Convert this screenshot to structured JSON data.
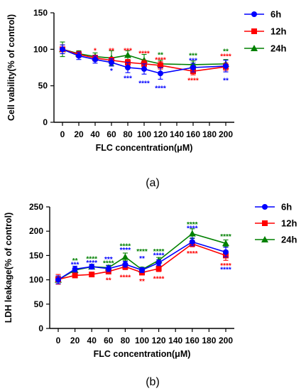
{
  "panels": [
    {
      "caption": "(a)",
      "chart_data": {
        "type": "line",
        "xlabel": "FLC concentration(μM)",
        "ylabel": "Cell vability(% of control)",
        "x_ticks": [
          "0",
          "20",
          "40",
          "60",
          "80",
          "100",
          "120",
          "140",
          "160",
          "180",
          "200"
        ],
        "y_ticks": [
          "0",
          "50",
          "100",
          "150"
        ],
        "ylim": [
          0,
          150
        ],
        "legend_position": "top-right",
        "series": [
          {
            "name": "6h",
            "color": "#0000ff",
            "marker": "circle",
            "x": [
              0,
              20,
              40,
              60,
              80,
              100,
              120,
              160,
              200
            ],
            "y": [
              100,
              91,
              86,
              82,
              75,
              73,
              67,
              75,
              77
            ],
            "err": [
              6,
              5,
              5,
              5,
              7,
              7,
              8,
              6,
              8
            ]
          },
          {
            "name": "12h",
            "color": "#ff0000",
            "marker": "square",
            "x": [
              0,
              20,
              40,
              60,
              80,
              100,
              120,
              160,
              200
            ],
            "y": [
              100,
              93,
              88,
              85,
              82,
              80,
              78,
              70,
              76
            ],
            "err": [
              6,
              4,
              4,
              4,
              4,
              5,
              5,
              5,
              5
            ]
          },
          {
            "name": "24h",
            "color": "#008000",
            "marker": "triangle",
            "x": [
              0,
              20,
              40,
              60,
              80,
              100,
              120,
              160,
              200
            ],
            "y": [
              100,
              94,
              90,
              88,
              92,
              85,
              80,
              79,
              80
            ],
            "err": [
              10,
              4,
              5,
              10,
              6,
              8,
              5,
              5,
              6
            ]
          }
        ],
        "annotations": [
          {
            "x": 40,
            "y": 99,
            "text": "*",
            "color": "#ff0000"
          },
          {
            "x": 60,
            "y": 99,
            "text": "**",
            "color": "#ff0000"
          },
          {
            "x": 60,
            "y": 71,
            "text": "*",
            "color": "#0000ff"
          },
          {
            "x": 80,
            "y": 99,
            "text": "***",
            "color": "#ff0000"
          },
          {
            "x": 80,
            "y": 61,
            "text": "***",
            "color": "#0000ff"
          },
          {
            "x": 100,
            "y": 95,
            "text": "****",
            "color": "#ff0000"
          },
          {
            "x": 100,
            "y": 54,
            "text": "****",
            "color": "#0000ff"
          },
          {
            "x": 120,
            "y": 93,
            "text": "**",
            "color": "#008000"
          },
          {
            "x": 120,
            "y": 86,
            "text": "****",
            "color": "#ff0000"
          },
          {
            "x": 120,
            "y": 47,
            "text": "****",
            "color": "#0000ff"
          },
          {
            "x": 160,
            "y": 92,
            "text": "***",
            "color": "#008000"
          },
          {
            "x": 160,
            "y": 85,
            "text": "***",
            "color": "#0000ff"
          },
          {
            "x": 160,
            "y": 58,
            "text": "****",
            "color": "#ff0000"
          },
          {
            "x": 200,
            "y": 98,
            "text": "**",
            "color": "#008000"
          },
          {
            "x": 200,
            "y": 91,
            "text": "****",
            "color": "#ff0000"
          },
          {
            "x": 200,
            "y": 58,
            "text": "**",
            "color": "#0000ff"
          }
        ]
      }
    },
    {
      "caption": "(b)",
      "chart_data": {
        "type": "line",
        "xlabel": "FLC concentration(μM)",
        "ylabel": "LDH leakage(% of control)",
        "x_ticks": [
          "0",
          "20",
          "40",
          "60",
          "80",
          "100",
          "120",
          "140",
          "160",
          "180",
          "200"
        ],
        "y_ticks": [
          "0",
          "50",
          "100",
          "150",
          "200",
          "250"
        ],
        "ylim": [
          0,
          250
        ],
        "legend_position": "top-right",
        "series": [
          {
            "name": "6h",
            "color": "#0000ff",
            "marker": "circle",
            "x": [
              0,
              20,
              40,
              60,
              80,
              100,
              120,
              160,
              200
            ],
            "y": [
              100,
              122,
              127,
              123,
              132,
              120,
              135,
              178,
              157
            ],
            "err": [
              8,
              6,
              5,
              6,
              6,
              5,
              6,
              8,
              10
            ]
          },
          {
            "name": "12h",
            "color": "#ff0000",
            "marker": "square",
            "x": [
              0,
              20,
              40,
              60,
              80,
              100,
              120,
              160,
              200
            ],
            "y": [
              101,
              109,
              111,
              117,
              127,
              115,
              123,
              174,
              150
            ],
            "err": [
              10,
              4,
              4,
              5,
              6,
              5,
              6,
              6,
              10
            ]
          },
          {
            "name": "24h",
            "color": "#008000",
            "marker": "triangle",
            "x": [
              0,
              20,
              40,
              60,
              80,
              100,
              120,
              160,
              200
            ],
            "y": [
              100,
              120,
              127,
              125,
              147,
              121,
              140,
              195,
              175
            ],
            "err": [
              8,
              5,
              4,
              5,
              8,
              5,
              6,
              10,
              7
            ]
          }
        ],
        "annotations": [
          {
            "x": 20,
            "y": 140,
            "text": "**",
            "color": "#008000"
          },
          {
            "x": 20,
            "y": 132,
            "text": "***",
            "color": "#0000ff"
          },
          {
            "x": 40,
            "y": 144,
            "text": "****",
            "color": "#008000"
          },
          {
            "x": 40,
            "y": 136,
            "text": "****",
            "color": "#0000ff"
          },
          {
            "x": 60,
            "y": 143,
            "text": "***",
            "color": "#0000ff"
          },
          {
            "x": 60,
            "y": 135,
            "text": "****",
            "color": "#008000"
          },
          {
            "x": 60,
            "y": 100,
            "text": "**",
            "color": "#ff0000"
          },
          {
            "x": 80,
            "y": 170,
            "text": "****",
            "color": "#008000"
          },
          {
            "x": 80,
            "y": 162,
            "text": "****",
            "color": "#0000ff"
          },
          {
            "x": 80,
            "y": 106,
            "text": "****",
            "color": "#ff0000"
          },
          {
            "x": 100,
            "y": 159,
            "text": "****",
            "color": "#008000"
          },
          {
            "x": 100,
            "y": 145,
            "text": "**",
            "color": "#0000ff"
          },
          {
            "x": 100,
            "y": 98,
            "text": "**",
            "color": "#ff0000"
          },
          {
            "x": 120,
            "y": 159,
            "text": "****",
            "color": "#008000"
          },
          {
            "x": 120,
            "y": 151,
            "text": "****",
            "color": "#0000ff"
          },
          {
            "x": 120,
            "y": 103,
            "text": "****",
            "color": "#ff0000"
          },
          {
            "x": 160,
            "y": 215,
            "text": "****",
            "color": "#008000"
          },
          {
            "x": 160,
            "y": 207,
            "text": "****",
            "color": "#0000ff"
          },
          {
            "x": 160,
            "y": 155,
            "text": "****",
            "color": "#ff0000"
          },
          {
            "x": 200,
            "y": 190,
            "text": "****",
            "color": "#008000"
          },
          {
            "x": 200,
            "y": 130,
            "text": "****",
            "color": "#ff0000"
          },
          {
            "x": 200,
            "y": 122,
            "text": "****",
            "color": "#0000ff"
          }
        ]
      }
    }
  ]
}
